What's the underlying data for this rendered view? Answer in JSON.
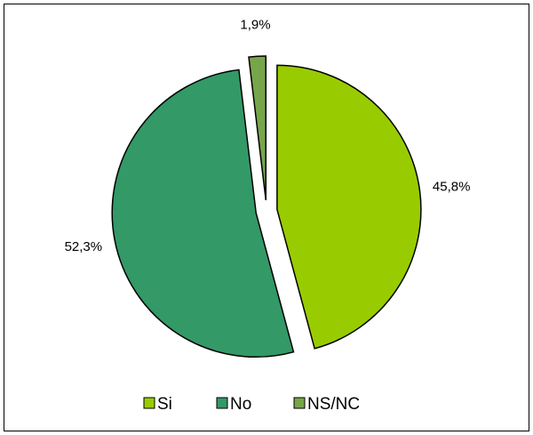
{
  "chart_data": {
    "type": "pie",
    "categories": [
      "Si",
      "No",
      "NS/NC"
    ],
    "values": [
      45.8,
      52.3,
      1.9
    ],
    "labels": [
      "45,8%",
      "52,3%",
      "1,9%"
    ],
    "colors": [
      "#99cc00",
      "#339966",
      "#77a54a"
    ],
    "exploded": true,
    "legend_position": "bottom"
  }
}
